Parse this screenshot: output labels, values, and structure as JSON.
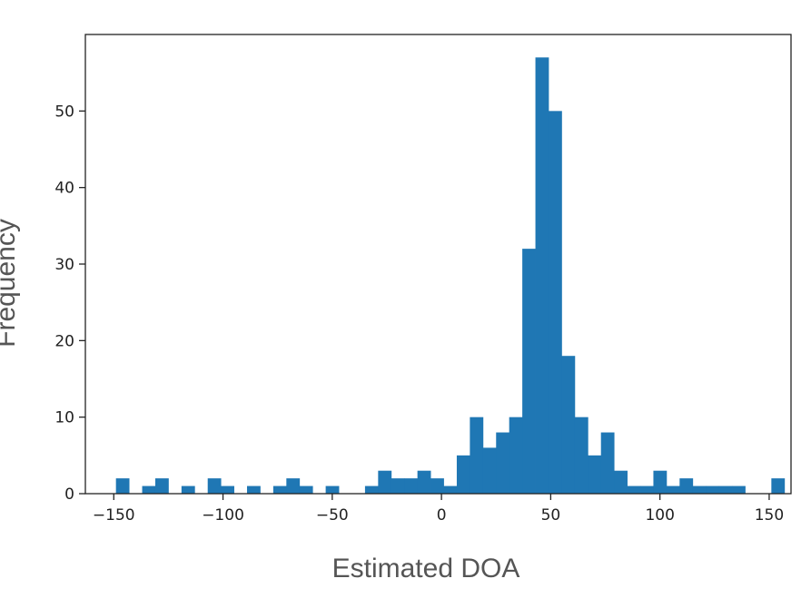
{
  "chart_data": {
    "type": "bar",
    "subtype": "histogram",
    "xlabel": "Estimated DOA",
    "ylabel": "Frequency",
    "xlim": [
      -163,
      160
    ],
    "ylim": [
      0,
      60
    ],
    "xticks": [
      -150,
      -100,
      -50,
      0,
      50,
      100,
      150
    ],
    "xtick_labels": [
      "−150",
      "−100",
      "−50",
      "0",
      "50",
      "100",
      "150"
    ],
    "yticks": [
      0,
      10,
      20,
      30,
      40,
      50
    ],
    "bar_color": "#1f77b4",
    "grid": false,
    "bins": [
      {
        "x0": -149,
        "x1": -143,
        "count": 2
      },
      {
        "x0": -137,
        "x1": -131,
        "count": 1
      },
      {
        "x0": -131,
        "x1": -125,
        "count": 2
      },
      {
        "x0": -119,
        "x1": -113,
        "count": 1
      },
      {
        "x0": -107,
        "x1": -101,
        "count": 2
      },
      {
        "x0": -101,
        "x1": -95,
        "count": 1
      },
      {
        "x0": -89,
        "x1": -83,
        "count": 1
      },
      {
        "x0": -77,
        "x1": -71,
        "count": 1
      },
      {
        "x0": -71,
        "x1": -65,
        "count": 2
      },
      {
        "x0": -65,
        "x1": -59,
        "count": 1
      },
      {
        "x0": -53,
        "x1": -47,
        "count": 1
      },
      {
        "x0": -35,
        "x1": -29,
        "count": 1
      },
      {
        "x0": -29,
        "x1": -23,
        "count": 3
      },
      {
        "x0": -23,
        "x1": -17,
        "count": 2
      },
      {
        "x0": -17,
        "x1": -11,
        "count": 2
      },
      {
        "x0": -11,
        "x1": -5,
        "count": 3
      },
      {
        "x0": -5,
        "x1": 1,
        "count": 2
      },
      {
        "x0": 1,
        "x1": 7,
        "count": 1
      },
      {
        "x0": 7,
        "x1": 13,
        "count": 5
      },
      {
        "x0": 13,
        "x1": 19,
        "count": 10
      },
      {
        "x0": 19,
        "x1": 25,
        "count": 6
      },
      {
        "x0": 25,
        "x1": 31,
        "count": 8
      },
      {
        "x0": 31,
        "x1": 37,
        "count": 10
      },
      {
        "x0": 37,
        "x1": 43,
        "count": 32
      },
      {
        "x0": 43,
        "x1": 49,
        "count": 57
      },
      {
        "x0": 49,
        "x1": 55,
        "count": 50
      },
      {
        "x0": 55,
        "x1": 61,
        "count": 18
      },
      {
        "x0": 61,
        "x1": 67,
        "count": 10
      },
      {
        "x0": 67,
        "x1": 73,
        "count": 5
      },
      {
        "x0": 73,
        "x1": 79,
        "count": 8
      },
      {
        "x0": 79,
        "x1": 85,
        "count": 3
      },
      {
        "x0": 85,
        "x1": 91,
        "count": 1
      },
      {
        "x0": 91,
        "x1": 97,
        "count": 1
      },
      {
        "x0": 97,
        "x1": 103,
        "count": 3
      },
      {
        "x0": 103,
        "x1": 109,
        "count": 1
      },
      {
        "x0": 109,
        "x1": 115,
        "count": 2
      },
      {
        "x0": 115,
        "x1": 121,
        "count": 1
      },
      {
        "x0": 121,
        "x1": 127,
        "count": 1
      },
      {
        "x0": 127,
        "x1": 133,
        "count": 1
      },
      {
        "x0": 133,
        "x1": 139,
        "count": 1
      },
      {
        "x0": 151,
        "x1": 157,
        "count": 2
      }
    ]
  }
}
